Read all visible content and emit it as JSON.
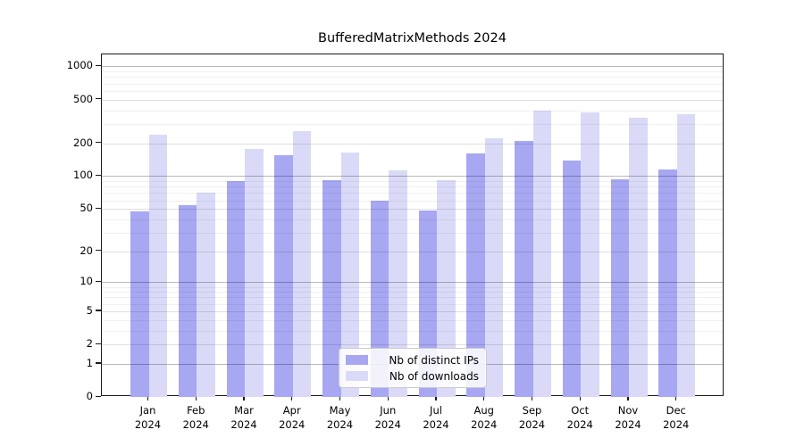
{
  "chart_data": {
    "type": "bar",
    "title": "BufferedMatrixMethods 2024",
    "categories": [
      "Jan 2024",
      "Feb 2024",
      "Mar 2024",
      "Apr 2024",
      "May 2024",
      "Jun 2024",
      "Jul 2024",
      "Aug 2024",
      "Sep 2024",
      "Oct 2024",
      "Nov 2024",
      "Dec 2024"
    ],
    "series": [
      {
        "name": "Nb of distinct IPs",
        "color": "#a7a7f2",
        "values": [
          47,
          54,
          90,
          154,
          92,
          60,
          48,
          161,
          210,
          140,
          94,
          116
        ]
      },
      {
        "name": "Nb of downloads",
        "color": "#dadaf8",
        "values": [
          240,
          70,
          177,
          257,
          165,
          112,
          91,
          221,
          400,
          385,
          341,
          366
        ]
      }
    ],
    "yscale": "log1p",
    "xlabel": "",
    "ylabel": "",
    "yticks": [
      0,
      1,
      2,
      5,
      10,
      20,
      50,
      100,
      200,
      500,
      1000
    ],
    "minor_yticks": [
      3,
      4,
      6,
      7,
      8,
      9,
      30,
      40,
      60,
      70,
      80,
      90,
      300,
      400,
      600,
      700,
      800,
      900
    ],
    "ylim": [
      0,
      1300
    ],
    "grid": true,
    "legend_position": "bottom-center"
  }
}
